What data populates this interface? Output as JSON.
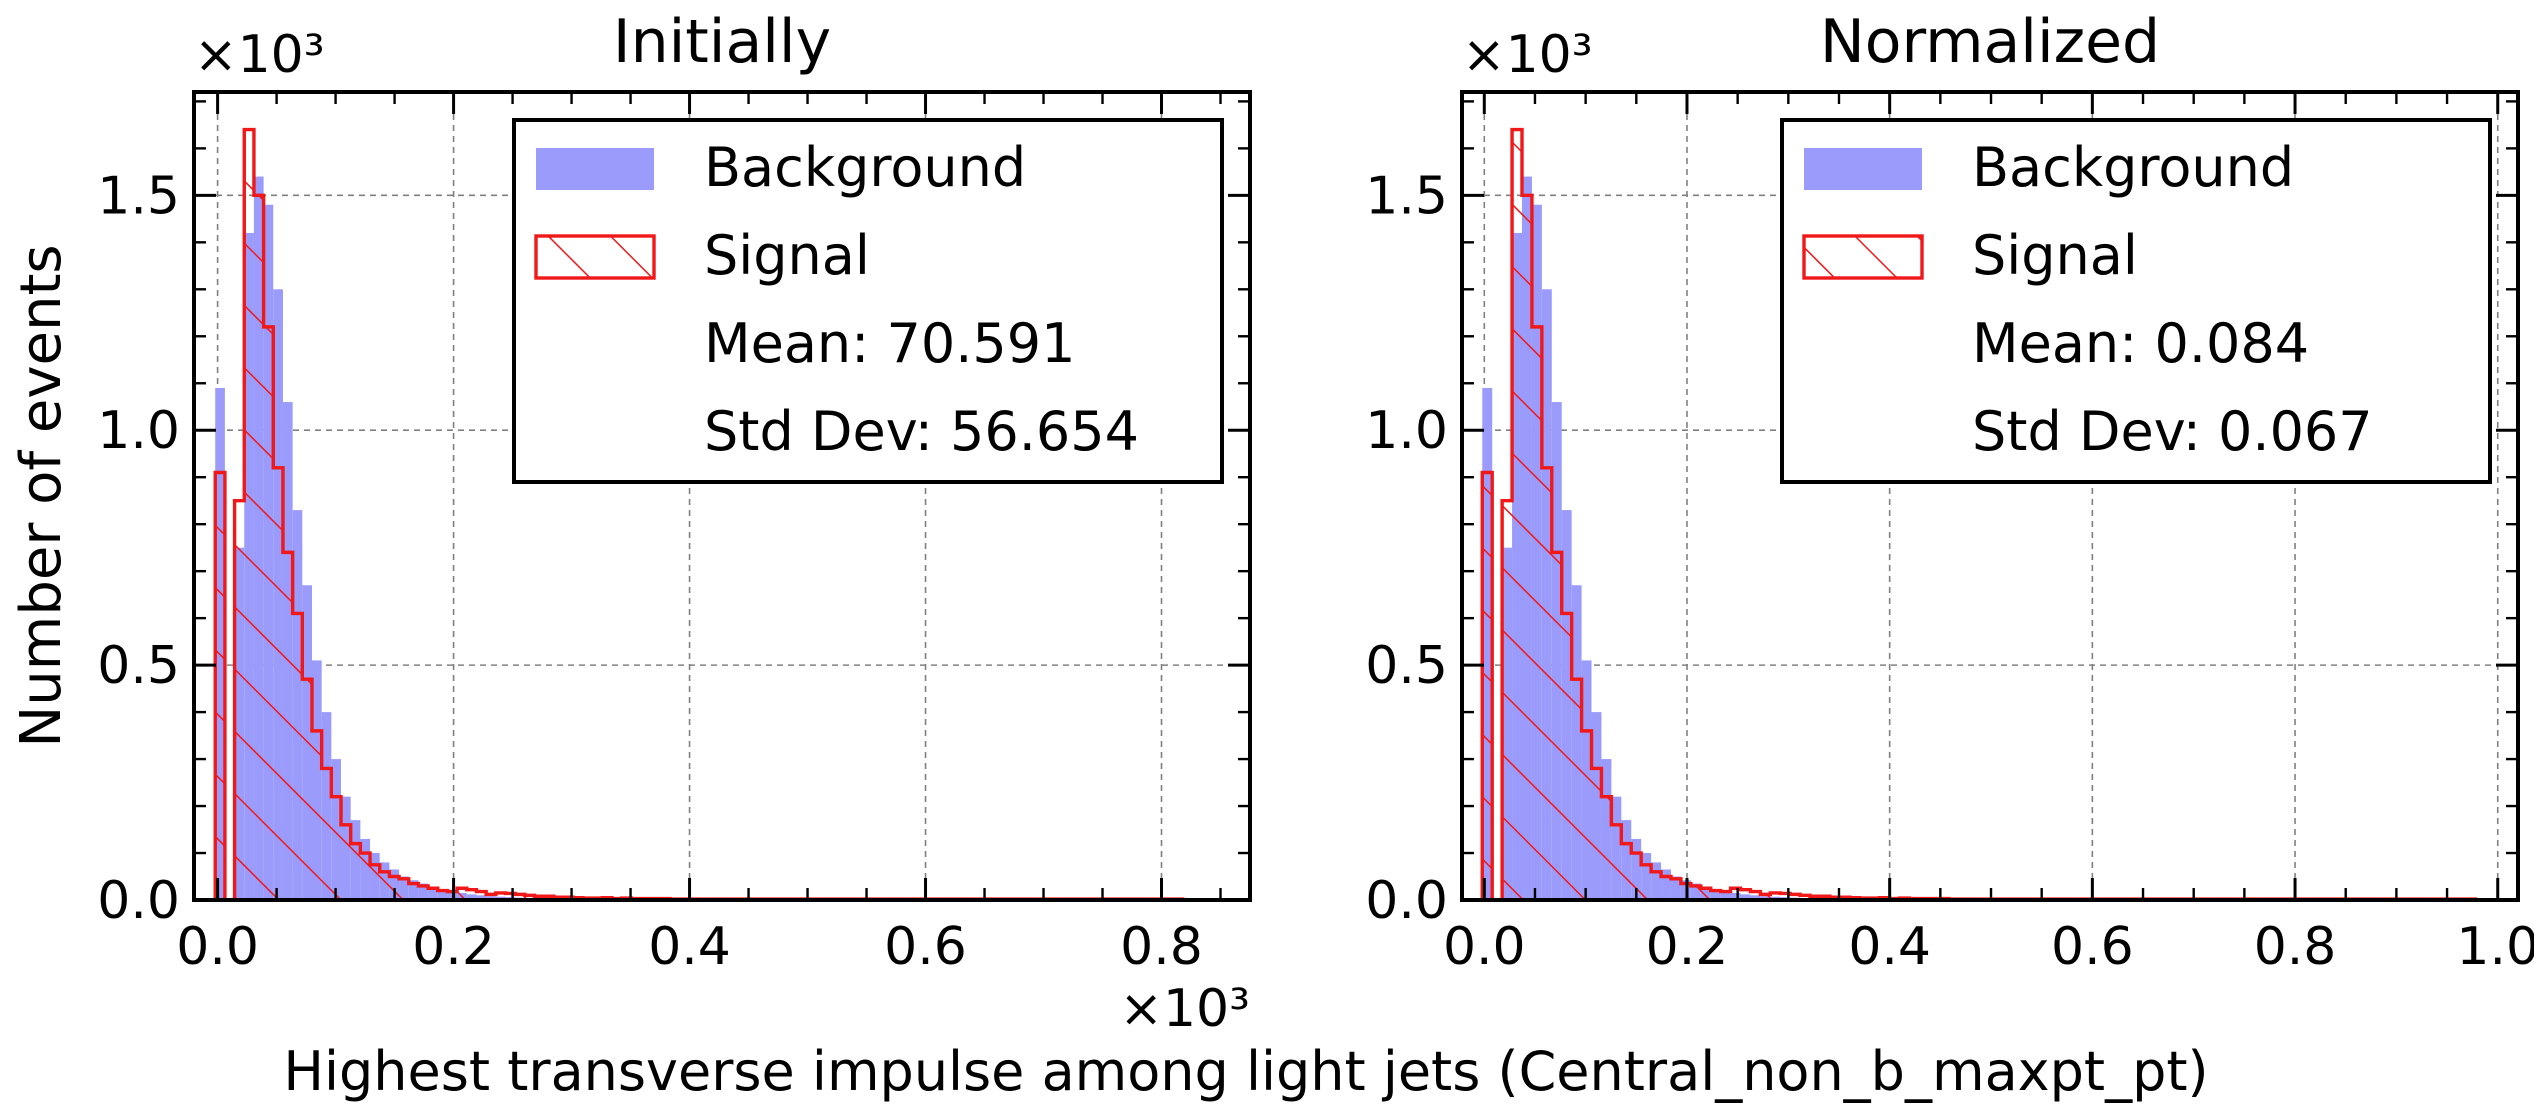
{
  "figure": {
    "shared_xlabel": "Highest transverse impulse among light jets (Central_non_b_maxpt_pt)",
    "shared_ylabel": "Number of events"
  },
  "colors": {
    "background_fill": "#9b9bfb",
    "signal_edge": "#f01818",
    "grid": "#808080",
    "axes": "#000000"
  },
  "chart_data": [
    {
      "type": "histogram",
      "title": "Initially",
      "xlabel": "",
      "ylabel": "Number of events",
      "x_multiplier": "×10³",
      "y_multiplier": "×10³",
      "xlim": [
        -0.02,
        0.875
      ],
      "ylim": [
        0,
        1.72
      ],
      "xticks": [
        0.0,
        0.2,
        0.4,
        0.6,
        0.8
      ],
      "xtick_labels": [
        "0.0",
        "0.2",
        "0.4",
        "0.6",
        "0.8"
      ],
      "yticks": [
        0.0,
        0.5,
        1.0,
        1.5
      ],
      "ytick_labels": [
        "0.0",
        "0.5",
        "1.0",
        "1.5"
      ],
      "grid": true,
      "legend_position": "top-right",
      "legend": [
        {
          "kind": "fill",
          "label": "Background"
        },
        {
          "kind": "hatch",
          "label": "Signal"
        },
        {
          "kind": "text",
          "label": "Mean: 70.591"
        },
        {
          "kind": "text",
          "label": "Std Dev: 56.654"
        }
      ],
      "bin_start": -0.002,
      "bin_width": 0.0082,
      "series": [
        {
          "name": "Background",
          "style": "filled",
          "values": [
            1.09,
            0,
            0.75,
            1.42,
            1.54,
            1.48,
            1.3,
            1.06,
            0.83,
            0.67,
            0.51,
            0.4,
            0.3,
            0.22,
            0.17,
            0.13,
            0.1,
            0.08,
            0.065,
            0.05,
            0.042,
            0.035,
            0.028,
            0.022,
            0.018,
            0.015,
            0.012,
            0.01,
            0.008,
            0.007,
            0.006,
            0.005,
            0.004,
            0.004,
            0.003,
            0.003,
            0.003,
            0.002,
            0.002,
            0.002,
            0.002,
            0.002,
            0.001,
            0.001,
            0.001,
            0.001,
            0.001,
            0.001,
            0.001,
            0.001,
            0.001,
            0.001,
            0.001,
            0.001,
            0.001,
            0.0005,
            0.0005,
            0.0005,
            0.0005,
            0.0005,
            0.0005,
            0.0005,
            0.0005,
            0.0005,
            0.0005,
            0.0005,
            0.0005,
            0.0005,
            0.0005,
            0.0005,
            0.0005,
            0.0005,
            0.0005,
            0.0005,
            0.0005,
            0.0005,
            0.0005,
            0.0005,
            0.0005,
            0.0005,
            0.0005,
            0.0005,
            0.0005,
            0.0005,
            0.0005,
            0.0005,
            0.0005,
            0.0005,
            0.0005,
            0.0005,
            0.0005,
            0.0005,
            0.0005,
            0.0005,
            0.0005,
            0.0005,
            0.0005,
            0.0005,
            0.0005,
            0.0005
          ]
        },
        {
          "name": "Signal",
          "style": "hatched",
          "values": [
            0.91,
            0,
            0.85,
            1.64,
            1.5,
            1.22,
            0.92,
            0.74,
            0.61,
            0.47,
            0.36,
            0.28,
            0.22,
            0.16,
            0.12,
            0.1,
            0.075,
            0.06,
            0.05,
            0.045,
            0.035,
            0.03,
            0.025,
            0.02,
            0.018,
            0.025,
            0.022,
            0.018,
            0.012,
            0.015,
            0.014,
            0.012,
            0.01,
            0.008,
            0.008,
            0.006,
            0.006,
            0.005,
            0.004,
            0.004,
            0.005,
            0.003,
            0.004,
            0.003,
            0.003,
            0.003,
            0.003,
            0.002,
            0.002,
            0.002,
            0.002,
            0.002,
            0.002,
            0.002,
            0.002,
            0.002,
            0.002,
            0.002,
            0.002,
            0.002,
            0.002,
            0.002,
            0.002,
            0.002,
            0.002,
            0.002,
            0.002,
            0.002,
            0.002,
            0.002,
            0.002,
            0.002,
            0.002,
            0.002,
            0.002,
            0.002,
            0.002,
            0.002,
            0.002,
            0.002,
            0.002,
            0.002,
            0.002,
            0.002,
            0.002,
            0.002,
            0.002,
            0.002,
            0.002,
            0.002,
            0.002,
            0.002,
            0.002,
            0.002,
            0.002,
            0.002,
            0.002,
            0.002,
            0.002,
            0.002
          ]
        }
      ]
    },
    {
      "type": "histogram",
      "title": "Normalized",
      "xlabel": "",
      "ylabel": "",
      "x_multiplier": "",
      "y_multiplier": "×10³",
      "xlim": [
        -0.022,
        1.02
      ],
      "ylim": [
        0,
        1.72
      ],
      "xticks": [
        0.0,
        0.2,
        0.4,
        0.6,
        0.8,
        1.0
      ],
      "xtick_labels": [
        "0.0",
        "0.2",
        "0.4",
        "0.6",
        "0.8",
        "1.0"
      ],
      "yticks": [
        0.0,
        0.5,
        1.0,
        1.5
      ],
      "ytick_labels": [
        "0.0",
        "0.5",
        "1.0",
        "1.5"
      ],
      "grid": true,
      "legend_position": "top-right",
      "legend": [
        {
          "kind": "fill",
          "label": "Background"
        },
        {
          "kind": "hatch",
          "label": "Signal"
        },
        {
          "kind": "text",
          "label": "Mean: 0.084"
        },
        {
          "kind": "text",
          "label": "Std Dev: 0.067"
        }
      ],
      "bin_start": -0.002,
      "bin_width": 0.0098,
      "series": [
        {
          "name": "Background",
          "style": "filled",
          "values": [
            1.09,
            0,
            0.75,
            1.42,
            1.54,
            1.48,
            1.3,
            1.06,
            0.83,
            0.67,
            0.51,
            0.4,
            0.3,
            0.22,
            0.17,
            0.13,
            0.1,
            0.08,
            0.065,
            0.05,
            0.042,
            0.035,
            0.028,
            0.022,
            0.018,
            0.015,
            0.012,
            0.01,
            0.008,
            0.007,
            0.006,
            0.005,
            0.004,
            0.004,
            0.003,
            0.003,
            0.003,
            0.002,
            0.002,
            0.002,
            0.002,
            0.002,
            0.001,
            0.001,
            0.001,
            0.001,
            0.001,
            0.001,
            0.001,
            0.001,
            0.001,
            0.001,
            0.001,
            0.001,
            0.001,
            0.0005,
            0.0005,
            0.0005,
            0.0005,
            0.0005,
            0.0005,
            0.0005,
            0.0005,
            0.0005,
            0.0005,
            0.0005,
            0.0005,
            0.0005,
            0.0005,
            0.0005,
            0.0005,
            0.0005,
            0.0005,
            0.0005,
            0.0005,
            0.0005,
            0.0005,
            0.0005,
            0.0005,
            0.0005,
            0.0005,
            0.0005,
            0.0005,
            0.0005,
            0.0005,
            0.0005,
            0.0005,
            0.0005,
            0.0005,
            0.0005,
            0.0005,
            0.0005,
            0.0005,
            0.0005,
            0.0005,
            0.0005,
            0.0005,
            0.0005,
            0.0005,
            0.0005
          ]
        },
        {
          "name": "Signal",
          "style": "hatched",
          "values": [
            0.91,
            0,
            0.85,
            1.64,
            1.5,
            1.22,
            0.92,
            0.74,
            0.61,
            0.47,
            0.36,
            0.28,
            0.22,
            0.16,
            0.12,
            0.1,
            0.075,
            0.06,
            0.05,
            0.045,
            0.035,
            0.03,
            0.025,
            0.02,
            0.018,
            0.025,
            0.022,
            0.018,
            0.012,
            0.015,
            0.014,
            0.012,
            0.01,
            0.008,
            0.008,
            0.006,
            0.006,
            0.005,
            0.004,
            0.004,
            0.005,
            0.003,
            0.004,
            0.003,
            0.003,
            0.003,
            0.003,
            0.002,
            0.002,
            0.002,
            0.002,
            0.002,
            0.002,
            0.002,
            0.002,
            0.002,
            0.002,
            0.002,
            0.002,
            0.002,
            0.002,
            0.002,
            0.002,
            0.002,
            0.002,
            0.002,
            0.002,
            0.002,
            0.002,
            0.002,
            0.002,
            0.002,
            0.002,
            0.002,
            0.002,
            0.002,
            0.002,
            0.002,
            0.002,
            0.002,
            0.002,
            0.002,
            0.002,
            0.002,
            0.002,
            0.002,
            0.002,
            0.002,
            0.002,
            0.002,
            0.002,
            0.002,
            0.002,
            0.002,
            0.002,
            0.002,
            0.002,
            0.002,
            0.002,
            0.002
          ]
        }
      ]
    }
  ]
}
